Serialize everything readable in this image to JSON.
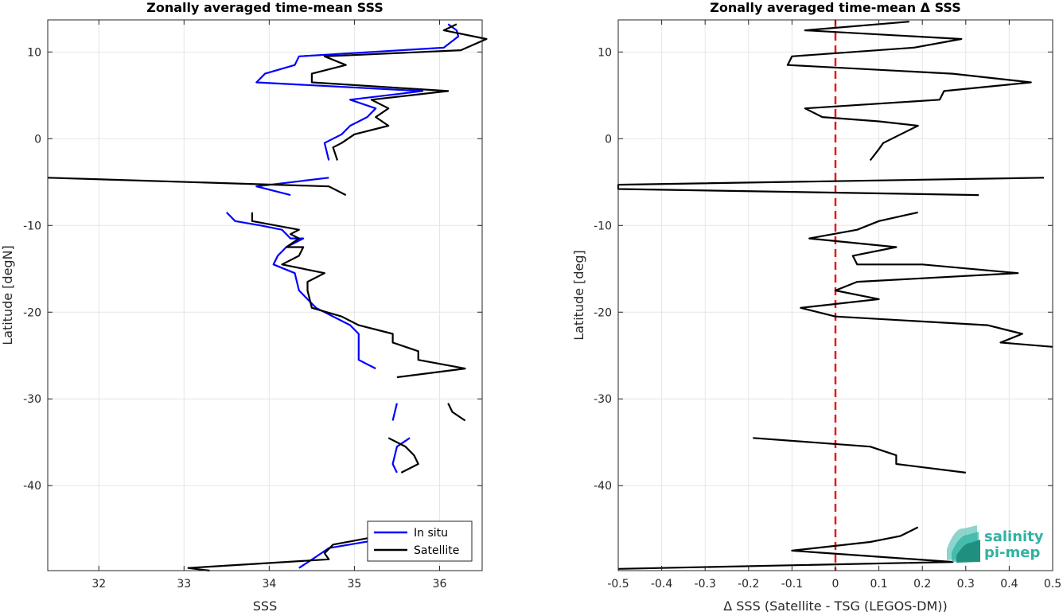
{
  "colors": {
    "in_situ": "#0000ff",
    "satellite": "#000000",
    "zero_line": "#e41a1c",
    "grid": "#e6e6e6",
    "logo": "#2fb3a2"
  },
  "logo": {
    "line1": "salinity",
    "line2": "pi-mep",
    "icon": "wave-logo-icon"
  },
  "chart_data": [
    {
      "type": "line",
      "title": "Zonally averaged time-mean SSS",
      "xlabel": "SSS",
      "ylabel": "Latitude [degN]",
      "xlim": [
        31.4,
        36.5
      ],
      "ylim": [
        -49.8,
        13.7
      ],
      "xticks": [
        32,
        33,
        34,
        35,
        36
      ],
      "yticks": [
        10,
        0,
        -10,
        -20,
        -30,
        -40
      ],
      "grid": true,
      "legend_position": "bottom-right",
      "series": [
        {
          "name": "In situ",
          "color": "#0000ff",
          "segments": [
            [
              [
                36.1,
                13.2
              ],
              [
                36.2,
                12.5
              ],
              [
                36.22,
                11.8
              ],
              [
                36.05,
                10.5
              ],
              [
                34.35,
                9.5
              ],
              [
                34.3,
                8.5
              ],
              [
                33.95,
                7.5
              ],
              [
                33.85,
                6.5
              ],
              [
                35.8,
                5.5
              ],
              [
                34.95,
                4.5
              ],
              [
                35.25,
                3.5
              ],
              [
                35.15,
                2.5
              ],
              [
                34.95,
                1.5
              ],
              [
                34.85,
                0.5
              ],
              [
                34.65,
                -0.5
              ],
              [
                34.7,
                -2.5
              ]
            ],
            [
              [
                34.7,
                -4.5
              ],
              [
                33.85,
                -5.5
              ],
              [
                34.25,
                -6.5
              ]
            ],
            [
              [
                33.5,
                -8.5
              ],
              [
                33.6,
                -9.5
              ],
              [
                33.9,
                -10.0
              ],
              [
                34.15,
                -10.5
              ],
              [
                34.25,
                -11.5
              ],
              [
                34.4,
                -11.5
              ],
              [
                34.2,
                -12.5
              ],
              [
                34.1,
                -13.5
              ],
              [
                34.05,
                -14.5
              ],
              [
                34.3,
                -15.5
              ],
              [
                34.35,
                -17.5
              ],
              [
                34.55,
                -19.5
              ],
              [
                34.95,
                -21.5
              ],
              [
                35.05,
                -22.5
              ],
              [
                35.05,
                -25.5
              ],
              [
                35.25,
                -26.5
              ]
            ],
            [
              [
                35.5,
                -30.5
              ],
              [
                35.45,
                -32.5
              ]
            ],
            [
              [
                35.65,
                -34.5
              ],
              [
                35.5,
                -35.5
              ],
              [
                35.45,
                -37.5
              ],
              [
                35.5,
                -38.5
              ]
            ],
            [
              [
                35.3,
                -46.2
              ],
              [
                34.7,
                -47.2
              ],
              [
                34.55,
                -48.2
              ],
              [
                34.35,
                -49.5
              ]
            ]
          ]
        },
        {
          "name": "Satellite",
          "color": "#000000",
          "segments": [
            [
              [
                36.2,
                13.2
              ],
              [
                36.05,
                12.5
              ],
              [
                36.55,
                11.5
              ],
              [
                36.25,
                10.2
              ],
              [
                34.65,
                9.5
              ],
              [
                34.9,
                8.5
              ],
              [
                34.5,
                7.5
              ],
              [
                34.5,
                6.5
              ],
              [
                36.1,
                5.5
              ],
              [
                35.2,
                4.5
              ],
              [
                35.4,
                3.5
              ],
              [
                35.25,
                2.5
              ],
              [
                35.4,
                1.5
              ],
              [
                35.0,
                0.5
              ],
              [
                34.85,
                -0.5
              ],
              [
                34.75,
                -1.0
              ],
              [
                34.8,
                -2.5
              ]
            ],
            [
              [
                31.4,
                -4.5
              ],
              [
                34.7,
                -5.5
              ],
              [
                34.9,
                -6.5
              ]
            ],
            [
              [
                33.8,
                -8.5
              ],
              [
                33.8,
                -9.5
              ],
              [
                34.35,
                -10.5
              ],
              [
                34.25,
                -11.0
              ],
              [
                34.35,
                -11.5
              ],
              [
                34.2,
                -12.5
              ],
              [
                34.4,
                -12.5
              ],
              [
                34.35,
                -13.5
              ],
              [
                34.15,
                -14.5
              ],
              [
                34.65,
                -15.5
              ],
              [
                34.45,
                -16.5
              ],
              [
                34.45,
                -17.5
              ],
              [
                34.5,
                -19.5
              ],
              [
                34.85,
                -20.5
              ],
              [
                35.05,
                -21.5
              ],
              [
                35.45,
                -22.5
              ],
              [
                35.45,
                -23.5
              ],
              [
                35.75,
                -24.5
              ],
              [
                35.75,
                -25.5
              ],
              [
                36.3,
                -26.5
              ],
              [
                35.5,
                -27.5
              ]
            ],
            [
              [
                36.1,
                -30.5
              ],
              [
                36.15,
                -31.5
              ],
              [
                36.3,
                -32.5
              ]
            ],
            [
              [
                35.4,
                -34.5
              ],
              [
                35.6,
                -35.5
              ],
              [
                35.7,
                -36.5
              ],
              [
                35.75,
                -37.5
              ],
              [
                35.55,
                -38.5
              ]
            ],
            [
              [
                35.3,
                -45.8
              ],
              [
                34.75,
                -46.8
              ],
              [
                34.65,
                -47.8
              ],
              [
                34.7,
                -48.5
              ],
              [
                33.05,
                -49.5
              ],
              [
                33.3,
                -49.8
              ]
            ]
          ]
        }
      ]
    },
    {
      "type": "line",
      "title": "Zonally averaged time-mean Δ SSS",
      "xlabel": "Δ SSS (Satellite - TSG (LEGOS-DM))",
      "ylabel": "Latitude [deg]",
      "xlim": [
        -0.5,
        0.5
      ],
      "ylim": [
        -49.8,
        13.7
      ],
      "xticks": [
        -0.5,
        -0.4,
        -0.3,
        -0.2,
        -0.1,
        0,
        0.1,
        0.2,
        0.3,
        0.4,
        0.5
      ],
      "xticklabels": [
        "-0.5",
        "-0.4",
        "-0.3",
        "-0.2",
        "-0.1",
        "0",
        "0.1",
        "0.2",
        "0.3",
        "0.4",
        "0.5"
      ],
      "yticks": [
        10,
        0,
        -10,
        -20,
        -30,
        -40
      ],
      "grid": true,
      "reference_line": {
        "x": 0,
        "style": "dashed",
        "color": "#e41a1c"
      },
      "series": [
        {
          "name": "",
          "color": "#000000",
          "segments": [
            [
              [
                0.17,
                13.5
              ],
              [
                -0.07,
                12.5
              ],
              [
                0.29,
                11.5
              ],
              [
                0.18,
                10.5
              ],
              [
                -0.1,
                9.5
              ],
              [
                -0.11,
                8.5
              ],
              [
                0.27,
                7.5
              ],
              [
                0.45,
                6.5
              ],
              [
                0.25,
                5.5
              ],
              [
                0.24,
                4.5
              ],
              [
                -0.07,
                3.5
              ],
              [
                -0.03,
                2.5
              ],
              [
                0.1,
                2.0
              ],
              [
                0.19,
                1.5
              ],
              [
                0.15,
                0.5
              ],
              [
                0.11,
                -0.5
              ],
              [
                0.1,
                -1.2
              ],
              [
                0.08,
                -2.5
              ]
            ],
            [
              [
                0.48,
                -4.5
              ],
              [
                -0.5,
                -5.3
              ],
              [
                -0.5,
                -5.8
              ],
              [
                0.33,
                -6.5
              ]
            ],
            [
              [
                0.19,
                -8.5
              ],
              [
                0.1,
                -9.5
              ],
              [
                0.05,
                -10.5
              ],
              [
                -0.06,
                -11.5
              ],
              [
                0.14,
                -12.5
              ],
              [
                0.04,
                -13.5
              ],
              [
                0.05,
                -14.5
              ],
              [
                0.2,
                -14.5
              ],
              [
                0.42,
                -15.5
              ],
              [
                0.05,
                -16.5
              ],
              [
                0.0,
                -17.5
              ],
              [
                0.1,
                -18.5
              ],
              [
                -0.08,
                -19.5
              ],
              [
                0.0,
                -20.5
              ],
              [
                0.35,
                -21.5
              ],
              [
                0.43,
                -22.5
              ],
              [
                0.38,
                -23.5
              ],
              [
                0.5,
                -24.0
              ]
            ],
            [
              [
                -0.19,
                -34.5
              ],
              [
                0.08,
                -35.5
              ],
              [
                0.14,
                -36.5
              ],
              [
                0.14,
                -37.5
              ],
              [
                0.3,
                -38.5
              ]
            ],
            [
              [
                0.19,
                -44.8
              ],
              [
                0.15,
                -45.8
              ],
              [
                0.08,
                -46.5
              ],
              [
                -0.1,
                -47.5
              ],
              [
                0.27,
                -48.8
              ],
              [
                -0.5,
                -49.6
              ]
            ]
          ]
        }
      ]
    }
  ]
}
